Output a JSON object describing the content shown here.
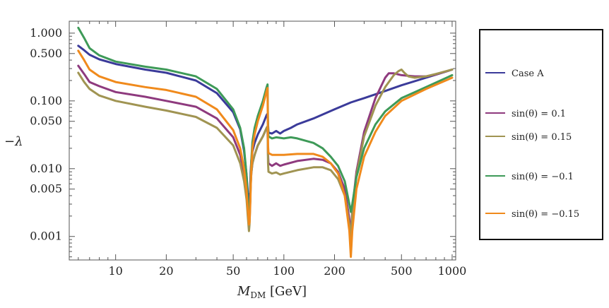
{
  "chart_data": {
    "type": "line",
    "title": "",
    "xlabel": "M_DM [GeV]",
    "ylabel": "−λ",
    "xscale": "log",
    "yscale": "log",
    "xlim": [
      5.3,
      1050
    ],
    "ylim": [
      0.00045,
      1.5
    ],
    "x_ticks": [
      {
        "value": 10,
        "label": "10"
      },
      {
        "value": 20,
        "label": "20"
      },
      {
        "value": 50,
        "label": "50"
      },
      {
        "value": 100,
        "label": "100"
      },
      {
        "value": 200,
        "label": "200"
      },
      {
        "value": 500,
        "label": "500"
      },
      {
        "value": 1000,
        "label": "1000"
      }
    ],
    "y_ticks": [
      {
        "value": 1.0,
        "label": "1.000"
      },
      {
        "value": 0.5,
        "label": "0.500"
      },
      {
        "value": 0.1,
        "label": "0.100"
      },
      {
        "value": 0.05,
        "label": "0.050"
      },
      {
        "value": 0.01,
        "label": "0.010"
      },
      {
        "value": 0.005,
        "label": "0.005"
      },
      {
        "value": 0.001,
        "label": "0.001"
      }
    ],
    "legend_position": "right",
    "series": [
      {
        "name": "Case A",
        "color": "#3b3b9a",
        "x": [
          6,
          6.5,
          7,
          8,
          10,
          15,
          20,
          30,
          40,
          50,
          55,
          58,
          60,
          61,
          62,
          62.5,
          63,
          63.5,
          64,
          65,
          67,
          70,
          75,
          79,
          80,
          80.5,
          81,
          85,
          90,
          95,
          100,
          110,
          120,
          150,
          200,
          250,
          300,
          400,
          500,
          700,
          1000
        ],
        "y": [
          0.65,
          0.56,
          0.48,
          0.41,
          0.35,
          0.29,
          0.26,
          0.2,
          0.13,
          0.068,
          0.038,
          0.018,
          0.008,
          0.0045,
          0.003,
          0.0035,
          0.0045,
          0.009,
          0.013,
          0.018,
          0.024,
          0.032,
          0.045,
          0.062,
          0.065,
          0.045,
          0.034,
          0.033,
          0.036,
          0.033,
          0.036,
          0.04,
          0.045,
          0.055,
          0.075,
          0.095,
          0.11,
          0.14,
          0.17,
          0.22,
          0.29
        ]
      },
      {
        "name": "sin(θ) = 0.1",
        "color": "#8e3a7e",
        "x": [
          6,
          6.5,
          7,
          8,
          10,
          15,
          20,
          30,
          40,
          50,
          55,
          58,
          60,
          61,
          62,
          62.5,
          63,
          63.5,
          64,
          65,
          67,
          70,
          75,
          79,
          80,
          80.5,
          81,
          85,
          90,
          95,
          100,
          120,
          150,
          170,
          190,
          210,
          230,
          245,
          250,
          255,
          270,
          300,
          350,
          400,
          420,
          450,
          500,
          600,
          700,
          800,
          1000
        ],
        "y": [
          0.33,
          0.25,
          0.19,
          0.165,
          0.135,
          0.115,
          0.1,
          0.082,
          0.055,
          0.029,
          0.016,
          0.0085,
          0.0045,
          0.0025,
          0.0018,
          0.002,
          0.003,
          0.006,
          0.0085,
          0.012,
          0.016,
          0.022,
          0.03,
          0.04,
          0.042,
          0.016,
          0.012,
          0.011,
          0.012,
          0.011,
          0.0115,
          0.013,
          0.014,
          0.0135,
          0.012,
          0.009,
          0.005,
          0.0018,
          0.001,
          0.0025,
          0.009,
          0.035,
          0.11,
          0.22,
          0.255,
          0.255,
          0.24,
          0.23,
          0.23,
          0.245,
          0.29
        ]
      },
      {
        "name": "sin(θ) = 0.15",
        "color": "#a09452",
        "x": [
          6,
          6.5,
          7,
          8,
          10,
          15,
          20,
          30,
          40,
          50,
          55,
          58,
          60,
          61,
          62,
          62.5,
          63,
          63.5,
          64,
          65,
          67,
          70,
          75,
          79,
          80,
          80.5,
          81,
          85,
          90,
          95,
          100,
          120,
          150,
          170,
          190,
          210,
          230,
          245,
          250,
          255,
          270,
          300,
          350,
          400,
          450,
          480,
          500,
          520,
          550,
          600,
          700,
          800,
          1000
        ],
        "y": [
          0.26,
          0.19,
          0.15,
          0.12,
          0.1,
          0.082,
          0.072,
          0.058,
          0.04,
          0.022,
          0.012,
          0.0065,
          0.0035,
          0.002,
          0.0012,
          0.0015,
          0.0028,
          0.0055,
          0.0085,
          0.012,
          0.016,
          0.022,
          0.03,
          0.04,
          0.042,
          0.012,
          0.009,
          0.0085,
          0.0088,
          0.0082,
          0.0085,
          0.0095,
          0.0105,
          0.0105,
          0.0095,
          0.007,
          0.004,
          0.0015,
          0.0009,
          0.0022,
          0.008,
          0.03,
          0.085,
          0.16,
          0.24,
          0.275,
          0.29,
          0.26,
          0.23,
          0.22,
          0.23,
          0.25,
          0.29
        ]
      },
      {
        "name": "sin(θ) = −0.1",
        "color": "#3e9a58",
        "x": [
          6,
          6.5,
          7,
          8,
          10,
          15,
          20,
          30,
          40,
          50,
          55,
          58,
          60,
          61,
          62,
          62.5,
          63,
          63.5,
          64,
          65,
          67,
          70,
          75,
          79,
          80,
          80.5,
          81,
          85,
          90,
          100,
          110,
          120,
          150,
          170,
          190,
          210,
          230,
          245,
          250,
          255,
          270,
          300,
          350,
          400,
          500,
          700,
          1000
        ],
        "y": [
          1.2,
          0.85,
          0.6,
          0.47,
          0.38,
          0.32,
          0.29,
          0.23,
          0.15,
          0.075,
          0.04,
          0.02,
          0.008,
          0.0035,
          0.0018,
          0.002,
          0.003,
          0.0065,
          0.013,
          0.025,
          0.04,
          0.06,
          0.1,
          0.16,
          0.175,
          0.04,
          0.03,
          0.028,
          0.029,
          0.028,
          0.029,
          0.028,
          0.024,
          0.02,
          0.015,
          0.011,
          0.0065,
          0.003,
          0.0023,
          0.003,
          0.0075,
          0.02,
          0.045,
          0.07,
          0.11,
          0.16,
          0.24
        ]
      },
      {
        "name": "sin(θ) = −0.15",
        "color": "#f08a1c",
        "x": [
          6,
          6.5,
          7,
          8,
          10,
          15,
          20,
          30,
          40,
          50,
          55,
          58,
          60,
          61,
          62,
          62.5,
          63,
          63.5,
          64,
          65,
          67,
          70,
          75,
          79,
          80,
          80.5,
          81,
          85,
          90,
          100,
          120,
          150,
          170,
          190,
          210,
          230,
          245,
          250,
          255,
          270,
          300,
          350,
          400,
          500,
          700,
          1000
        ],
        "y": [
          0.55,
          0.4,
          0.29,
          0.23,
          0.19,
          0.16,
          0.145,
          0.115,
          0.075,
          0.037,
          0.02,
          0.01,
          0.0048,
          0.0025,
          0.0015,
          0.0016,
          0.0025,
          0.005,
          0.01,
          0.02,
          0.032,
          0.05,
          0.085,
          0.14,
          0.155,
          0.022,
          0.017,
          0.016,
          0.016,
          0.016,
          0.0165,
          0.0165,
          0.015,
          0.012,
          0.0085,
          0.004,
          0.0012,
          0.0005,
          0.0012,
          0.005,
          0.015,
          0.035,
          0.06,
          0.1,
          0.15,
          0.22
        ]
      }
    ]
  }
}
